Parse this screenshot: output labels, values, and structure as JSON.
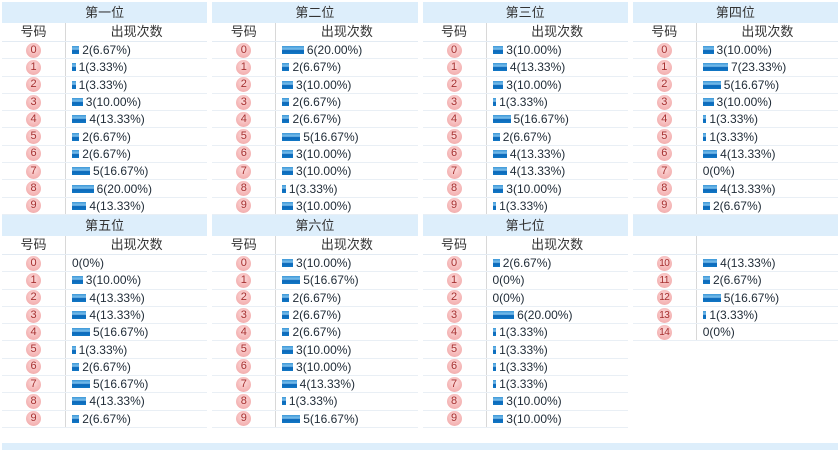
{
  "column_headers": {
    "number": "号码",
    "count": "出现次数"
  },
  "colors": {
    "header_band": "#ddeefb",
    "bar_blue": "#1277c5",
    "badge_pink": "#f2aaaa",
    "badge_text": "#a63030",
    "row_border": "#e9eff5",
    "text": "#1e2a36"
  },
  "sections": [
    {
      "title": "第一位",
      "show_headers": true,
      "rows": [
        {
          "num": "0",
          "count": 2,
          "label": "2(6.67%)"
        },
        {
          "num": "1",
          "count": 1,
          "label": "1(3.33%)"
        },
        {
          "num": "2",
          "count": 1,
          "label": "1(3.33%)"
        },
        {
          "num": "3",
          "count": 3,
          "label": "3(10.00%)"
        },
        {
          "num": "4",
          "count": 4,
          "label": "4(13.33%)"
        },
        {
          "num": "5",
          "count": 2,
          "label": "2(6.67%)"
        },
        {
          "num": "6",
          "count": 2,
          "label": "2(6.67%)"
        },
        {
          "num": "7",
          "count": 5,
          "label": "5(16.67%)"
        },
        {
          "num": "8",
          "count": 6,
          "label": "6(20.00%)"
        },
        {
          "num": "9",
          "count": 4,
          "label": "4(13.33%)"
        }
      ]
    },
    {
      "title": "第二位",
      "show_headers": true,
      "rows": [
        {
          "num": "0",
          "count": 6,
          "label": "6(20.00%)"
        },
        {
          "num": "1",
          "count": 2,
          "label": "2(6.67%)"
        },
        {
          "num": "2",
          "count": 3,
          "label": "3(10.00%)"
        },
        {
          "num": "3",
          "count": 2,
          "label": "2(6.67%)"
        },
        {
          "num": "4",
          "count": 2,
          "label": "2(6.67%)"
        },
        {
          "num": "5",
          "count": 5,
          "label": "5(16.67%)"
        },
        {
          "num": "6",
          "count": 3,
          "label": "3(10.00%)"
        },
        {
          "num": "7",
          "count": 3,
          "label": "3(10.00%)"
        },
        {
          "num": "8",
          "count": 1,
          "label": "1(3.33%)"
        },
        {
          "num": "9",
          "count": 3,
          "label": "3(10.00%)"
        }
      ]
    },
    {
      "title": "第三位",
      "show_headers": true,
      "rows": [
        {
          "num": "0",
          "count": 3,
          "label": "3(10.00%)"
        },
        {
          "num": "1",
          "count": 4,
          "label": "4(13.33%)"
        },
        {
          "num": "2",
          "count": 3,
          "label": "3(10.00%)"
        },
        {
          "num": "3",
          "count": 1,
          "label": "1(3.33%)"
        },
        {
          "num": "4",
          "count": 5,
          "label": "5(16.67%)"
        },
        {
          "num": "5",
          "count": 2,
          "label": "2(6.67%)"
        },
        {
          "num": "6",
          "count": 4,
          "label": "4(13.33%)"
        },
        {
          "num": "7",
          "count": 4,
          "label": "4(13.33%)"
        },
        {
          "num": "8",
          "count": 3,
          "label": "3(10.00%)"
        },
        {
          "num": "9",
          "count": 1,
          "label": "1(3.33%)"
        }
      ]
    },
    {
      "title": "第四位",
      "show_headers": true,
      "rows": [
        {
          "num": "0",
          "count": 3,
          "label": "3(10.00%)"
        },
        {
          "num": "1",
          "count": 7,
          "label": "7(23.33%)"
        },
        {
          "num": "2",
          "count": 5,
          "label": "5(16.67%)"
        },
        {
          "num": "3",
          "count": 3,
          "label": "3(10.00%)"
        },
        {
          "num": "4",
          "count": 1,
          "label": "1(3.33%)"
        },
        {
          "num": "5",
          "count": 1,
          "label": "1(3.33%)"
        },
        {
          "num": "6",
          "count": 4,
          "label": "4(13.33%)"
        },
        {
          "num": "7",
          "count": 0,
          "label": "0(0%)"
        },
        {
          "num": "8",
          "count": 4,
          "label": "4(13.33%)"
        },
        {
          "num": "9",
          "count": 2,
          "label": "2(6.67%)"
        }
      ]
    },
    {
      "title": "第五位",
      "show_headers": true,
      "rows": [
        {
          "num": "0",
          "count": 0,
          "label": "0(0%)"
        },
        {
          "num": "1",
          "count": 3,
          "label": "3(10.00%)"
        },
        {
          "num": "2",
          "count": 4,
          "label": "4(13.33%)"
        },
        {
          "num": "3",
          "count": 4,
          "label": "4(13.33%)"
        },
        {
          "num": "4",
          "count": 5,
          "label": "5(16.67%)"
        },
        {
          "num": "5",
          "count": 1,
          "label": "1(3.33%)"
        },
        {
          "num": "6",
          "count": 2,
          "label": "2(6.67%)"
        },
        {
          "num": "7",
          "count": 5,
          "label": "5(16.67%)"
        },
        {
          "num": "8",
          "count": 4,
          "label": "4(13.33%)"
        },
        {
          "num": "9",
          "count": 2,
          "label": "2(6.67%)"
        }
      ]
    },
    {
      "title": "第六位",
      "show_headers": true,
      "rows": [
        {
          "num": "0",
          "count": 3,
          "label": "3(10.00%)"
        },
        {
          "num": "1",
          "count": 5,
          "label": "5(16.67%)"
        },
        {
          "num": "2",
          "count": 2,
          "label": "2(6.67%)"
        },
        {
          "num": "3",
          "count": 2,
          "label": "2(6.67%)"
        },
        {
          "num": "4",
          "count": 2,
          "label": "2(6.67%)"
        },
        {
          "num": "5",
          "count": 3,
          "label": "3(10.00%)"
        },
        {
          "num": "6",
          "count": 3,
          "label": "3(10.00%)"
        },
        {
          "num": "7",
          "count": 4,
          "label": "4(13.33%)"
        },
        {
          "num": "8",
          "count": 1,
          "label": "1(3.33%)"
        },
        {
          "num": "9",
          "count": 5,
          "label": "5(16.67%)"
        }
      ]
    },
    {
      "title": "第七位",
      "show_headers": true,
      "rows": [
        {
          "num": "0",
          "count": 2,
          "label": "2(6.67%)"
        },
        {
          "num": "1",
          "count": 0,
          "label": "0(0%)"
        },
        {
          "num": "2",
          "count": 0,
          "label": "0(0%)"
        },
        {
          "num": "3",
          "count": 6,
          "label": "6(20.00%)"
        },
        {
          "num": "4",
          "count": 1,
          "label": "1(3.33%)"
        },
        {
          "num": "5",
          "count": 1,
          "label": "1(3.33%)"
        },
        {
          "num": "6",
          "count": 1,
          "label": "1(3.33%)"
        },
        {
          "num": "7",
          "count": 1,
          "label": "1(3.33%)"
        },
        {
          "num": "8",
          "count": 3,
          "label": "3(10.00%)"
        },
        {
          "num": "9",
          "count": 3,
          "label": "3(10.00%)"
        }
      ]
    },
    {
      "title": "",
      "show_headers": false,
      "rows": [
        {
          "num": "10",
          "count": 4,
          "label": "4(13.33%)"
        },
        {
          "num": "11",
          "count": 2,
          "label": "2(6.67%)"
        },
        {
          "num": "12",
          "count": 5,
          "label": "5(16.67%)"
        },
        {
          "num": "13",
          "count": 1,
          "label": "1(3.33%)"
        },
        {
          "num": "14",
          "count": 0,
          "label": "0(0%)"
        }
      ]
    }
  ],
  "chart_data": [
    {
      "type": "bar",
      "title": "第一位",
      "xlabel": "号码",
      "ylabel": "出现次数",
      "categories": [
        "0",
        "1",
        "2",
        "3",
        "4",
        "5",
        "6",
        "7",
        "8",
        "9"
      ],
      "values": [
        2,
        1,
        1,
        3,
        4,
        2,
        2,
        5,
        6,
        4
      ],
      "percent_labels": [
        "6.67%",
        "3.33%",
        "3.33%",
        "10.00%",
        "13.33%",
        "6.67%",
        "6.67%",
        "16.67%",
        "20.00%",
        "13.33%"
      ]
    },
    {
      "type": "bar",
      "title": "第二位",
      "xlabel": "号码",
      "ylabel": "出现次数",
      "categories": [
        "0",
        "1",
        "2",
        "3",
        "4",
        "5",
        "6",
        "7",
        "8",
        "9"
      ],
      "values": [
        6,
        2,
        3,
        2,
        2,
        5,
        3,
        3,
        1,
        3
      ],
      "percent_labels": [
        "20.00%",
        "6.67%",
        "10.00%",
        "6.67%",
        "6.67%",
        "16.67%",
        "10.00%",
        "10.00%",
        "3.33%",
        "10.00%"
      ]
    },
    {
      "type": "bar",
      "title": "第三位",
      "xlabel": "号码",
      "ylabel": "出现次数",
      "categories": [
        "0",
        "1",
        "2",
        "3",
        "4",
        "5",
        "6",
        "7",
        "8",
        "9"
      ],
      "values": [
        3,
        4,
        3,
        1,
        5,
        2,
        4,
        4,
        3,
        1
      ],
      "percent_labels": [
        "10.00%",
        "13.33%",
        "10.00%",
        "3.33%",
        "16.67%",
        "6.67%",
        "13.33%",
        "13.33%",
        "10.00%",
        "3.33%"
      ]
    },
    {
      "type": "bar",
      "title": "第四位",
      "xlabel": "号码",
      "ylabel": "出现次数",
      "categories": [
        "0",
        "1",
        "2",
        "3",
        "4",
        "5",
        "6",
        "7",
        "8",
        "9"
      ],
      "values": [
        3,
        7,
        5,
        3,
        1,
        1,
        4,
        0,
        4,
        2
      ],
      "percent_labels": [
        "10.00%",
        "23.33%",
        "16.67%",
        "10.00%",
        "3.33%",
        "3.33%",
        "13.33%",
        "0%",
        "13.33%",
        "6.67%"
      ]
    },
    {
      "type": "bar",
      "title": "第五位",
      "xlabel": "号码",
      "ylabel": "出现次数",
      "categories": [
        "0",
        "1",
        "2",
        "3",
        "4",
        "5",
        "6",
        "7",
        "8",
        "9"
      ],
      "values": [
        0,
        3,
        4,
        4,
        5,
        1,
        2,
        5,
        4,
        2
      ],
      "percent_labels": [
        "0%",
        "10.00%",
        "13.33%",
        "13.33%",
        "16.67%",
        "3.33%",
        "6.67%",
        "16.67%",
        "13.33%",
        "6.67%"
      ]
    },
    {
      "type": "bar",
      "title": "第六位",
      "xlabel": "号码",
      "ylabel": "出现次数",
      "categories": [
        "0",
        "1",
        "2",
        "3",
        "4",
        "5",
        "6",
        "7",
        "8",
        "9"
      ],
      "values": [
        3,
        5,
        2,
        2,
        2,
        3,
        3,
        4,
        1,
        5
      ],
      "percent_labels": [
        "10.00%",
        "16.67%",
        "6.67%",
        "6.67%",
        "6.67%",
        "10.00%",
        "10.00%",
        "13.33%",
        "3.33%",
        "16.67%"
      ]
    },
    {
      "type": "bar",
      "title": "第七位",
      "xlabel": "号码",
      "ylabel": "出现次数",
      "categories": [
        "0",
        "1",
        "2",
        "3",
        "4",
        "5",
        "6",
        "7",
        "8",
        "9"
      ],
      "values": [
        2,
        0,
        0,
        6,
        1,
        1,
        1,
        1,
        3,
        3
      ],
      "percent_labels": [
        "6.67%",
        "0%",
        "0%",
        "20.00%",
        "3.33%",
        "3.33%",
        "3.33%",
        "3.33%",
        "10.00%",
        "10.00%"
      ]
    },
    {
      "type": "bar",
      "title": "",
      "xlabel": "号码",
      "ylabel": "出现次数",
      "categories": [
        "10",
        "11",
        "12",
        "13",
        "14"
      ],
      "values": [
        4,
        2,
        5,
        1,
        0
      ],
      "percent_labels": [
        "13.33%",
        "6.67%",
        "16.67%",
        "3.33%",
        "0%"
      ]
    }
  ]
}
